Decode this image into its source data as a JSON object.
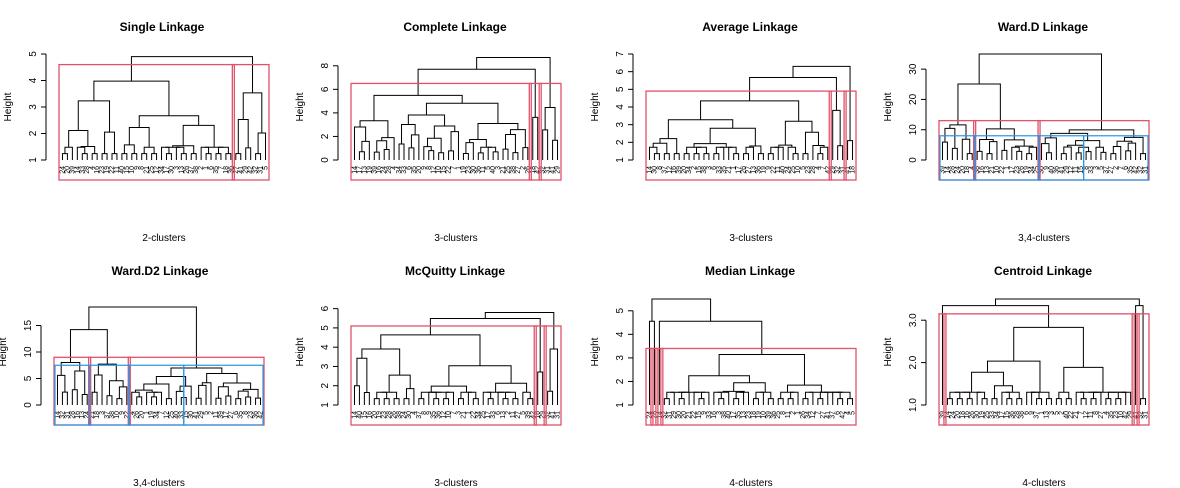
{
  "chart_data": [
    {
      "type": "dendrogram",
      "title": "Single Linkage",
      "ylabel": "Height",
      "xlabel": "2-clusters",
      "yticks": [
        1,
        2,
        3,
        4,
        5
      ],
      "ylim": [
        1,
        5
      ],
      "top_height": 4.9,
      "leaf_count": 42,
      "cluster_sizes": [
        35,
        7
      ],
      "cluster_cut_heights": [
        4.6
      ],
      "leaf_labels": [
        "24",
        "20",
        "39",
        "14",
        "33",
        "28",
        "4",
        "16",
        "23",
        "19",
        "22",
        "11",
        "40",
        "15",
        "10",
        "9",
        "8",
        "21",
        "25",
        "12",
        "34",
        "17",
        "30",
        "3",
        "13",
        "26",
        "37",
        "38",
        "2",
        "1",
        "6",
        "35",
        "7",
        "18",
        "36",
        "27",
        "41",
        "29",
        "42",
        "32",
        "31",
        "5"
      ]
    },
    {
      "type": "dendrogram",
      "title": "Complete Linkage",
      "ylabel": "Height",
      "xlabel": "3-clusters",
      "yticks": [
        0,
        2,
        4,
        6,
        8
      ],
      "ylim": [
        0,
        9
      ],
      "top_height": 8.7,
      "leaf_count": 42,
      "cluster_sizes": [
        36,
        2,
        4
      ],
      "cluster_cut_heights": [
        6.5
      ],
      "leaf_labels": [
        "14",
        "17",
        "13",
        "19",
        "39",
        "16",
        "24",
        "28",
        "4",
        "34",
        "33",
        "6",
        "35",
        "20",
        "9",
        "8",
        "12",
        "10",
        "15",
        "22",
        "7",
        "1",
        "19",
        "23",
        "30",
        "36",
        "11",
        "5",
        "40",
        "3",
        "21",
        "25",
        "38",
        "27",
        "2",
        "26",
        "18",
        "42",
        "32",
        "31",
        "41",
        "29"
      ]
    },
    {
      "type": "dendrogram",
      "title": "Average Linkage",
      "ylabel": "Height",
      "xlabel": "3-clusters",
      "yticks": [
        1,
        2,
        3,
        4,
        5,
        6,
        7
      ],
      "ylim": [
        1,
        7
      ],
      "top_height": 6.3,
      "leaf_count": 42,
      "cluster_sizes": [
        37,
        3,
        2
      ],
      "cluster_cut_heights": [
        4.9
      ],
      "leaf_labels": [
        "14",
        "30",
        "8",
        "37",
        "12",
        "16",
        "39",
        "20",
        "34",
        "2",
        "15",
        "38",
        "3",
        "6",
        "33",
        "35",
        "21",
        "1",
        "17",
        "26",
        "27",
        "13",
        "36",
        "19",
        "9",
        "22",
        "11",
        "40",
        "24",
        "25",
        "10",
        "5",
        "23",
        "28",
        "4",
        "7",
        "42",
        "29",
        "32",
        "31",
        "41",
        "18"
      ]
    },
    {
      "type": "dendrogram",
      "title": "Ward.D Linkage",
      "ylabel": "Height",
      "xlabel": "3,4-clusters",
      "yticks": [
        0,
        10,
        20,
        30
      ],
      "ylim": [
        0,
        35
      ],
      "top_height": 35,
      "leaf_count": 42,
      "cluster_sizes": [
        7,
        13,
        22
      ],
      "cluster_cut_heights": [
        13
      ],
      "four_cluster_cut_height": 8,
      "leaf_labels": [
        "39",
        "14",
        "28",
        "24",
        "20",
        "18",
        "4",
        "38",
        "16",
        "13",
        "21",
        "10",
        "22",
        "1",
        "17",
        "23",
        "26",
        "19",
        "34",
        "25",
        "30",
        "9",
        "40",
        "36",
        "41",
        "29",
        "12",
        "11",
        "15",
        "8",
        "33",
        "3",
        "5",
        "37",
        "27",
        "2",
        "7",
        "6",
        "35",
        "42",
        "32",
        "31"
      ]
    },
    {
      "type": "dendrogram",
      "title": "Ward.D2 Linkage",
      "ylabel": "Height",
      "xlabel": "3,4-clusters",
      "yticks": [
        0,
        5,
        10,
        15
      ],
      "ylim": [
        0,
        20
      ],
      "top_height": 18.5,
      "leaf_count": 42,
      "cluster_sizes": [
        7,
        8,
        27
      ],
      "cluster_cut_heights": [
        9
      ],
      "four_cluster_cut_height": 7.5,
      "leaf_labels": [
        "14",
        "32",
        "31",
        "28",
        "16",
        "13",
        "24",
        "21",
        "18",
        "3",
        "37",
        "38",
        "10",
        "9",
        "22",
        "4",
        "26",
        "20",
        "1",
        "19",
        "34",
        "7",
        "12",
        "25",
        "40",
        "33",
        "15",
        "30",
        "41",
        "29",
        "5",
        "2",
        "11",
        "39",
        "17",
        "27",
        "6",
        "35",
        "8",
        "23",
        "36",
        "42"
      ]
    },
    {
      "type": "dendrogram",
      "title": "McQuitty Linkage",
      "ylabel": "Height",
      "xlabel": "3-clusters",
      "yticks": [
        1,
        2,
        3,
        4,
        5,
        6
      ],
      "ylim": [
        1,
        6.5
      ],
      "top_height": 5.8,
      "leaf_count": 42,
      "cluster_sizes": [
        37,
        2,
        3
      ],
      "cluster_cut_heights": [
        5.1
      ],
      "leaf_labels": [
        "14",
        "40",
        "15",
        "16",
        "20",
        "19",
        "23",
        "28",
        "26",
        "38",
        "24",
        "30",
        "4",
        "37",
        "8",
        "9",
        "35",
        "36",
        "12",
        "10",
        "7",
        "3",
        "21",
        "1",
        "22",
        "34",
        "25",
        "17",
        "33",
        "6",
        "13",
        "2",
        "11",
        "27",
        "5",
        "39",
        "42",
        "18",
        "29",
        "32",
        "41",
        "31"
      ]
    },
    {
      "type": "dendrogram",
      "title": "Median Linkage",
      "ylabel": "Height",
      "xlabel": "4-clusters",
      "yticks": [
        1,
        2,
        3,
        4,
        5
      ],
      "ylim": [
        1,
        5.5
      ],
      "top_height": 5.5,
      "leaf_count": 42,
      "cluster_sizes": [
        1,
        1,
        1,
        39
      ],
      "cluster_cut_heights": [
        3.4
      ],
      "leaf_labels": [
        "24",
        "28",
        "14",
        "32",
        "31",
        "29",
        "30",
        "20",
        "21",
        "22",
        "15",
        "9",
        "33",
        "16",
        "3",
        "38",
        "40",
        "17",
        "35",
        "13",
        "23",
        "18",
        "19",
        "10",
        "39",
        "36",
        "25",
        "8",
        "11",
        "2",
        "1",
        "26",
        "34",
        "12",
        "7",
        "27",
        "41",
        "37",
        "6",
        "42",
        "4",
        "5"
      ]
    },
    {
      "type": "dendrogram",
      "title": "Centroid Linkage",
      "ylabel": "Height",
      "xlabel": "4-clusters",
      "yticks": [
        1.0,
        2.0,
        3.0
      ],
      "ylim": [
        1.0,
        3.5
      ],
      "top_height": 3.5,
      "leaf_count": 42,
      "cluster_sizes": [
        1,
        38,
        1,
        2
      ],
      "cluster_cut_heights": [
        3.15
      ],
      "leaf_labels": [
        "39",
        "14",
        "24",
        "20",
        "18",
        "16",
        "26",
        "30",
        "19",
        "25",
        "33",
        "34",
        "17",
        "15",
        "36",
        "28",
        "38",
        "6",
        "9",
        "37",
        "1",
        "13",
        "3",
        "5",
        "2",
        "40",
        "22",
        "21",
        "7",
        "12",
        "11",
        "8",
        "27",
        "4",
        "35",
        "23",
        "10",
        "42",
        "29",
        "41",
        "32",
        "31"
      ]
    }
  ]
}
